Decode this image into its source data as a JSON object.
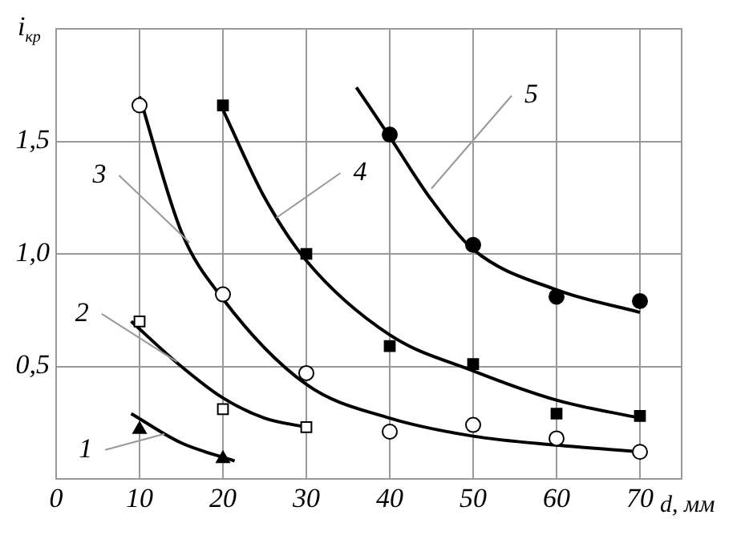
{
  "chart_data": {
    "type": "scatter",
    "xlabel": "d, мм",
    "ylabel": "i$_{кр}$",
    "xlim": [
      0,
      75
    ],
    "ylim": [
      0,
      2
    ],
    "xticks": [
      0,
      10,
      20,
      30,
      40,
      50,
      60,
      70
    ],
    "yticks": [
      {
        "value": 0.5,
        "label": "0,5"
      },
      {
        "value": 1,
        "label": "1,0"
      },
      {
        "value": 1.5,
        "label": "1,5"
      }
    ],
    "grid": true,
    "legend": false,
    "series": [
      {
        "type": "scatter",
        "marker": "triangle",
        "color": "#000000",
        "x": [
          10,
          20
        ],
        "values": [
          0.22,
          0.09
        ]
      },
      {
        "type": "line",
        "marker": "none",
        "color": "#000000",
        "x": [
          9,
          15,
          21.4
        ],
        "values": [
          0.29,
          0.16,
          0.08
        ]
      },
      {
        "type": "scatter",
        "marker": "square",
        "color": "#ffffff",
        "x": [
          10,
          20,
          30
        ],
        "values": [
          0.7,
          0.31,
          0.23
        ]
      },
      {
        "type": "line",
        "marker": "none",
        "color": "#000000",
        "x": [
          9,
          15,
          20,
          25,
          30
        ],
        "values": [
          0.7,
          0.5,
          0.36,
          0.27,
          0.23
        ]
      },
      {
        "type": "scatter",
        "marker": "circle",
        "color": "#ffffff",
        "x": [
          10,
          20,
          30,
          40,
          50,
          60,
          70
        ],
        "values": [
          1.66,
          0.82,
          0.47,
          0.21,
          0.24,
          0.18,
          0.12
        ]
      },
      {
        "type": "line",
        "marker": "none",
        "color": "#000000",
        "x": [
          10,
          15,
          20,
          30,
          40,
          50,
          60,
          70
        ],
        "values": [
          1.7,
          1.1,
          0.8,
          0.42,
          0.27,
          0.19,
          0.15,
          0.12
        ]
      },
      {
        "type": "scatter",
        "marker": "square",
        "color": "#000000",
        "x": [
          20,
          30,
          40,
          50,
          60,
          70
        ],
        "values": [
          1.66,
          1.0,
          0.59,
          0.51,
          0.29,
          0.28
        ]
      },
      {
        "type": "line",
        "marker": "none",
        "color": "#000000",
        "x": [
          20,
          25,
          30,
          40,
          50,
          60,
          70
        ],
        "values": [
          1.64,
          1.25,
          0.97,
          0.64,
          0.48,
          0.35,
          0.27
        ]
      },
      {
        "type": "scatter",
        "marker": "circle",
        "color": "#000000",
        "x": [
          40,
          50,
          60,
          70
        ],
        "values": [
          1.53,
          1.04,
          0.81,
          0.79
        ]
      },
      {
        "type": "line",
        "marker": "none",
        "color": "#000000",
        "x": [
          36,
          40,
          45,
          50,
          60,
          70
        ],
        "values": [
          1.74,
          1.52,
          1.24,
          1.02,
          0.84,
          0.74
        ]
      }
    ],
    "annotations": [
      {
        "text": "1",
        "x": 13,
        "y": 0.2
      },
      {
        "text": "2",
        "x": 14.5,
        "y": 0.52
      },
      {
        "text": "3",
        "x": 16,
        "y": 1.05
      },
      {
        "text": "4",
        "x": 26.4,
        "y": 1.16
      },
      {
        "text": "5",
        "x": 45,
        "y": 1.29
      }
    ]
  }
}
